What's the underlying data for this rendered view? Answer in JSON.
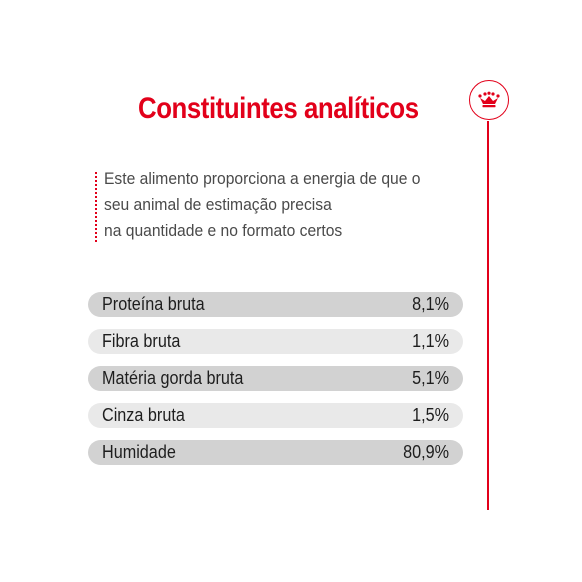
{
  "title": "Constituintes analíticos",
  "description_lines": [
    "Este alimento proporciona a energia de que o",
    "seu animal de estimação precisa",
    "na quantidade e no formato certos"
  ],
  "rows": [
    {
      "label": "Proteína bruta",
      "value": "8,1%"
    },
    {
      "label": "Fibra bruta",
      "value": "1,1%"
    },
    {
      "label": "Matéria gorda bruta",
      "value": "5,1%"
    },
    {
      "label": "Cinza bruta",
      "value": "1,5%"
    },
    {
      "label": "Humidade",
      "value": "80,9%"
    }
  ],
  "colors": {
    "accent": "#e2001a",
    "row_dark": "#d2d2d2",
    "row_light": "#e9e9e9"
  },
  "logo_icon": "crown-icon"
}
